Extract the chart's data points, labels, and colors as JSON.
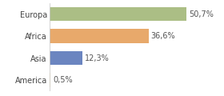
{
  "categories": [
    "America",
    "Asia",
    "Africa",
    "Europa"
  ],
  "values": [
    0.5,
    12.3,
    36.6,
    50.7
  ],
  "labels": [
    "0,5%",
    "12,3%",
    "36,6%",
    "50,7%"
  ],
  "bar_colors": [
    "#f5d89a",
    "#6b85c0",
    "#e8a96b",
    "#abbe85"
  ],
  "background_color": "#ffffff",
  "xlim": [
    0,
    62
  ],
  "bar_height": 0.65,
  "label_fontsize": 7,
  "tick_fontsize": 7
}
